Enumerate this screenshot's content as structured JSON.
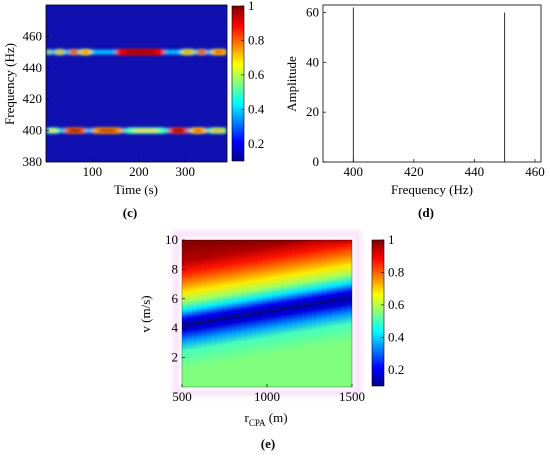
{
  "chart_data": [
    {
      "id": "c",
      "panel_label": "(c)",
      "type": "heatmap",
      "xlabel": "Time (s)",
      "ylabel": "Frequency (Hz)",
      "xlim": [
        0,
        390
      ],
      "ylim": [
        380,
        480
      ],
      "xticks": [
        100,
        200,
        300
      ],
      "yticks": [
        380,
        400,
        420,
        440,
        460
      ],
      "background_color": "#1010b0",
      "colorbar": {
        "min": 0.1,
        "max": 1,
        "ticks": [
          0.2,
          0.4,
          0.6,
          0.8,
          1
        ],
        "tick_labels": [
          "0.2",
          "0.4",
          "0.6",
          "0.8",
          "1"
        ]
      },
      "bands": [
        {
          "frequency": 450,
          "segments": [
            {
              "t_start": 0,
              "t_end": 10,
              "level": 0.55
            },
            {
              "t_start": 20,
              "t_end": 40,
              "level": 0.6
            },
            {
              "t_start": 50,
              "t_end": 70,
              "level": 0.75
            },
            {
              "t_start": 72,
              "t_end": 98,
              "level": 0.65
            },
            {
              "t_start": 150,
              "t_end": 255,
              "level": 0.9
            },
            {
              "t_start": 290,
              "t_end": 320,
              "level": 0.6
            },
            {
              "t_start": 325,
              "t_end": 345,
              "level": 0.75
            },
            {
              "t_start": 355,
              "t_end": 390,
              "level": 0.7
            }
          ]
        },
        {
          "frequency": 400,
          "segments": [
            {
              "t_start": 0,
              "t_end": 30,
              "level": 0.5
            },
            {
              "t_start": 40,
              "t_end": 85,
              "level": 0.8
            },
            {
              "t_start": 100,
              "t_end": 165,
              "level": 0.75
            },
            {
              "t_start": 170,
              "t_end": 260,
              "level": 0.5
            },
            {
              "t_start": 265,
              "t_end": 305,
              "level": 0.85
            },
            {
              "t_start": 310,
              "t_end": 345,
              "level": 0.7
            },
            {
              "t_start": 350,
              "t_end": 390,
              "level": 0.55
            }
          ]
        }
      ]
    },
    {
      "id": "d",
      "panel_label": "(d)",
      "type": "line",
      "xlabel": "Frequency (Hz)",
      "ylabel": "Amplitude",
      "xlim": [
        390,
        462
      ],
      "ylim": [
        0,
        63
      ],
      "xticks": [
        400,
        420,
        440,
        460
      ],
      "yticks": [
        0,
        20,
        40,
        60
      ],
      "spikes": [
        {
          "x": 400,
          "y": 62
        },
        {
          "x": 450,
          "y": 60
        }
      ]
    },
    {
      "id": "e",
      "panel_label": "(e)",
      "type": "heatmap",
      "xlabel": "r",
      "xlabel_sub": "CPA",
      "xlabel_unit": " (m)",
      "ylabel": "v (m/s)",
      "xlim": [
        500,
        1500
      ],
      "ylim": [
        0,
        10
      ],
      "xticks": [
        500,
        1000,
        1500
      ],
      "yticks": [
        2,
        4,
        6,
        8,
        10
      ],
      "colorbar": {
        "min": 0.1,
        "max": 1,
        "ticks": [
          0.2,
          0.4,
          0.6,
          0.8,
          1
        ],
        "tick_labels": [
          "0.2",
          "0.4",
          "0.6",
          "0.8",
          "1"
        ]
      },
      "trough_line": [
        {
          "x": 500,
          "y": 4.2
        },
        {
          "x": 1500,
          "y": 6.1
        }
      ],
      "profile": [
        {
          "dy": -4.5,
          "level": 0.55
        },
        {
          "dy": -3.0,
          "level": 0.55
        },
        {
          "dy": -1.8,
          "level": 0.5
        },
        {
          "dy": -1.1,
          "level": 0.35
        },
        {
          "dy": -0.4,
          "level": 0.18
        },
        {
          "dy": 0,
          "level": 0.12
        },
        {
          "dy": 0.4,
          "level": 0.2
        },
        {
          "dy": 1.0,
          "level": 0.42
        },
        {
          "dy": 1.6,
          "level": 0.58
        },
        {
          "dy": 2.2,
          "level": 0.68
        },
        {
          "dy": 2.9,
          "level": 0.78
        },
        {
          "dy": 3.6,
          "level": 0.87
        },
        {
          "dy": 4.3,
          "level": 0.95
        },
        {
          "dy": 6.5,
          "level": 1.0
        }
      ]
    }
  ]
}
